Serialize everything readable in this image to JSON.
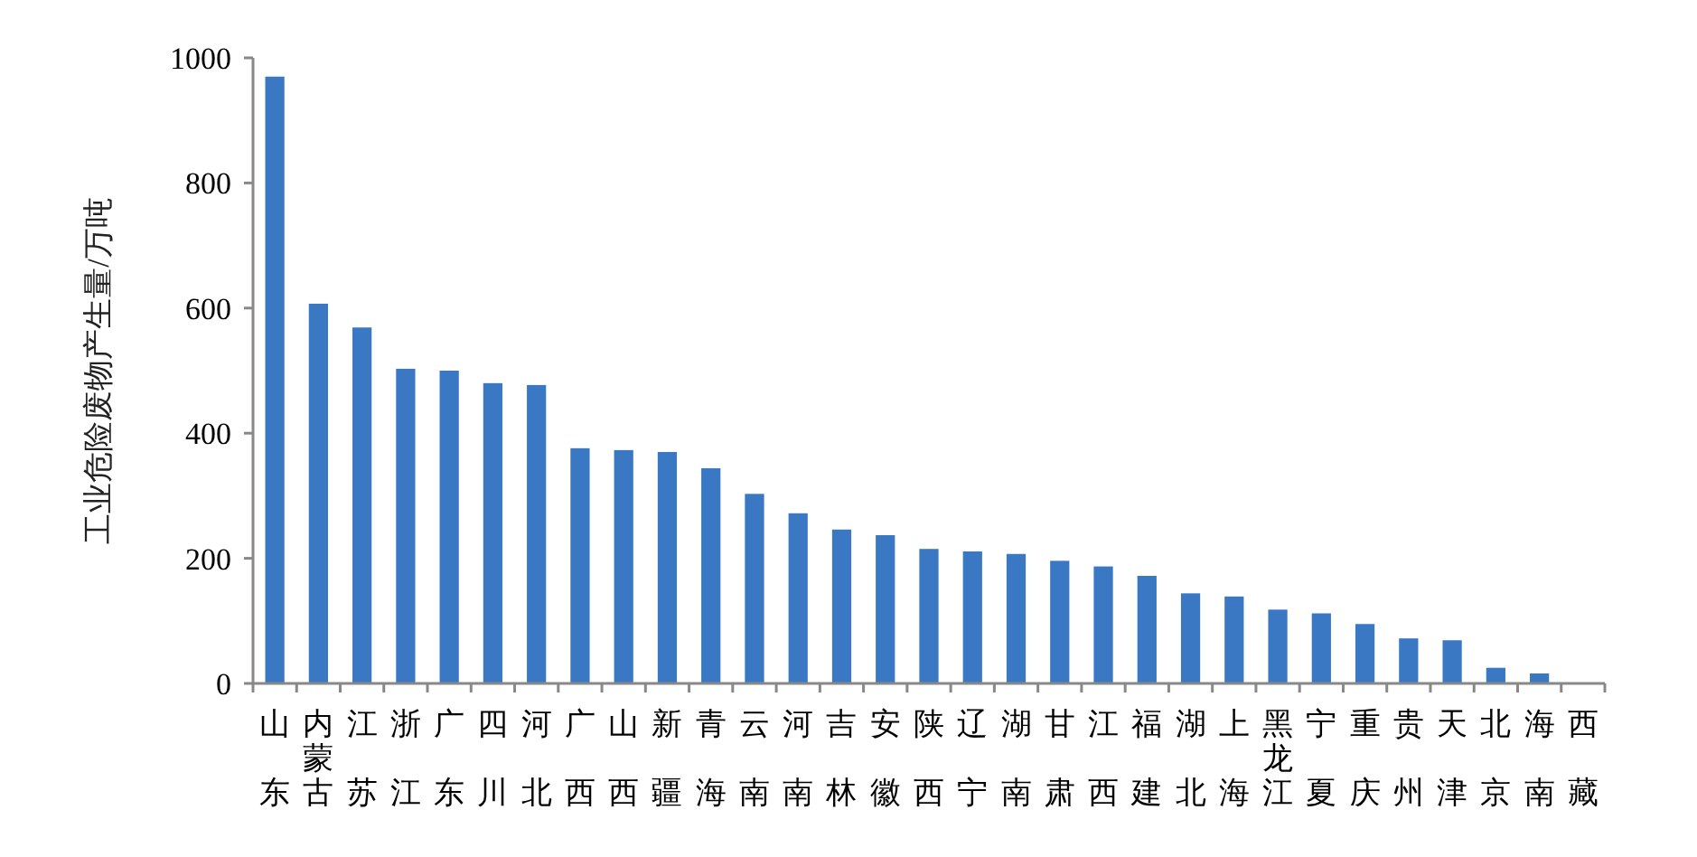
{
  "chart_data": {
    "type": "bar",
    "ylabel": "工业危险废物产生量/万吨",
    "categories": [
      "山东",
      "内蒙古",
      "江苏",
      "浙江",
      "广东",
      "四川",
      "河北",
      "广西",
      "山西",
      "新疆",
      "青海",
      "云南",
      "河南",
      "吉林",
      "安徽",
      "陕西",
      "辽宁",
      "湖南",
      "甘肃",
      "江西",
      "福建",
      "湖北",
      "上海",
      "黑龙江",
      "宁夏",
      "重庆",
      "贵州",
      "天津",
      "北京",
      "海南",
      "西藏"
    ],
    "values": [
      970,
      607,
      569,
      503,
      500,
      480,
      477,
      376,
      373,
      370,
      344,
      303,
      272,
      246,
      237,
      215,
      211,
      207,
      196,
      187,
      172,
      144,
      139,
      118,
      112,
      95,
      72,
      69,
      25,
      16,
      0
    ],
    "color": "#3a78c4",
    "ylim": [
      0,
      1000
    ],
    "yticks": [
      0,
      200,
      400,
      600,
      800,
      1000
    ],
    "grid": false,
    "legend": false
  }
}
